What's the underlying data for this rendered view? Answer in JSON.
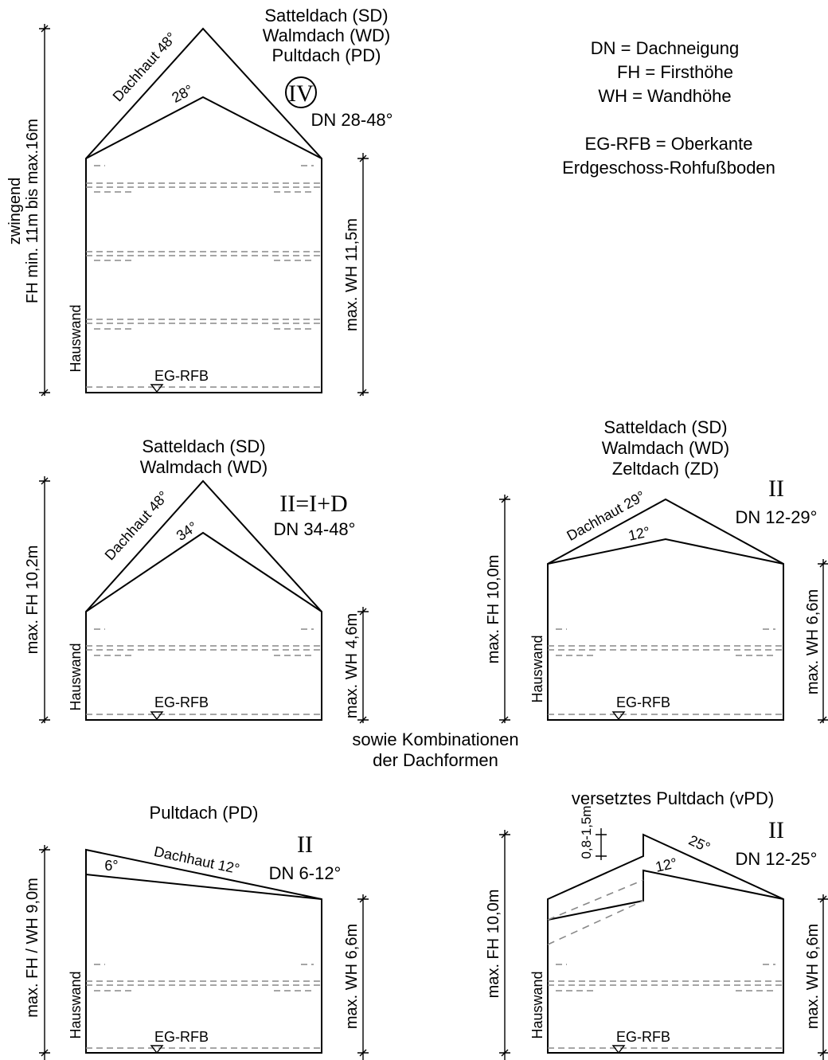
{
  "legend": {
    "dn": "DN  = Dachneigung",
    "fh": "FH  = Firsthöhe",
    "wh": "WH = Wandhöhe",
    "egrfb_line1": "EG-RFB = Oberkante",
    "egrfb_line2": "Erdgeschoss-Rohfußboden"
  },
  "combinations": {
    "line1": "sowie Kombinationen",
    "line2": "der Dachformen"
  },
  "panels": {
    "iv": {
      "title_lines": [
        "Satteldach (SD)",
        "Walmdach (WD)",
        "Pultdach (PD)"
      ],
      "storeys": "IV",
      "dn": "DN 28-48°",
      "roof_skin": "Dachhaut 48°",
      "inner_angle": "28°",
      "fh_line1": "zwingend",
      "fh_line2": "FH  min. 11m bis max.16m",
      "wh": "max. WH 11,5m",
      "wall": "Hauswand",
      "floor": "EG-RFB"
    },
    "ii_id": {
      "title_lines": [
        "Satteldach (SD)",
        "Walmdach (WD)"
      ],
      "storeys": "II=I+D",
      "dn": "DN 34-48°",
      "roof_skin": "Dachhaut 48°",
      "inner_angle": "34°",
      "fh": "max. FH 10,2m",
      "wh": "max. WH 4,6m",
      "wall": "Hauswand",
      "floor": "EG-RFB"
    },
    "ii_zd": {
      "title_lines": [
        "Satteldach (SD)",
        "Walmdach (WD)",
        "Zeltdach (ZD)"
      ],
      "storeys": "II",
      "dn": "DN 12-29°",
      "roof_skin": "Dachhaut 29°",
      "inner_angle": "12°",
      "fh": "max. FH 10,0m",
      "wh": "max. WH 6,6m",
      "wall": "Hauswand",
      "floor": "EG-RFB"
    },
    "pd": {
      "title": "Pultdach (PD)",
      "storeys": "II",
      "dn": "DN 6-12°",
      "roof_skin": "Dachhaut 12°",
      "inner_angle": "6°",
      "fh": "max. FH / WH 9,0m",
      "wh": "max. WH 6,6m",
      "wall": "Hauswand",
      "floor": "EG-RFB"
    },
    "vpd": {
      "title": "versetztes Pultdach (vPD)",
      "storeys": "II",
      "dn": "DN 12-25°",
      "roof_skin": "25°",
      "inner_angle": "12°",
      "offset": "0,8-1,5m",
      "fh": "max. FH 10,0m",
      "wh": "max. WH 6,6m",
      "wall": "Hauswand",
      "floor": "EG-RFB"
    }
  }
}
